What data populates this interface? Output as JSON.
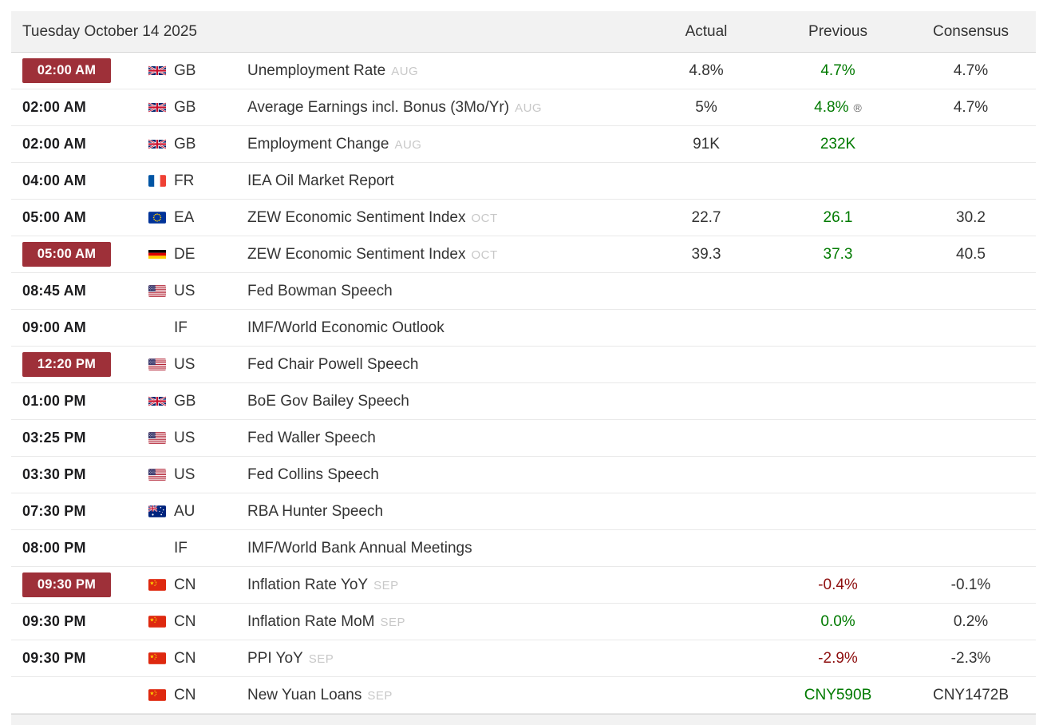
{
  "header": {
    "date": "Tuesday October 14 2025",
    "columns": {
      "actual": "Actual",
      "previous": "Previous",
      "consensus": "Consensus"
    }
  },
  "colors": {
    "badge_red": "#9e3039",
    "positive_green": "#007a00",
    "negative_red": "#8e0f0f",
    "header_bg": "#f2f2f2",
    "row_divider": "#e9e9e9"
  },
  "revised_marker": "®",
  "rows": [
    {
      "time": "02:00 AM",
      "highlight": true,
      "flag": "gb",
      "country": "GB",
      "event": "Unemployment Rate",
      "ref": "AUG",
      "actual": "4.8%",
      "previous": "4.7%",
      "previous_color": "green",
      "consensus": "4.7%"
    },
    {
      "time": "02:00 AM",
      "highlight": false,
      "flag": "gb",
      "country": "GB",
      "event": "Average Earnings incl. Bonus (3Mo/Yr)",
      "ref": "AUG",
      "actual": "5%",
      "previous": "4.8%",
      "previous_color": "green",
      "previous_revised": true,
      "consensus": "4.7%"
    },
    {
      "time": "02:00 AM",
      "highlight": false,
      "flag": "gb",
      "country": "GB",
      "event": "Employment Change",
      "ref": "AUG",
      "actual": "91K",
      "previous": "232K",
      "previous_color": "green",
      "consensus": ""
    },
    {
      "time": "04:00 AM",
      "highlight": false,
      "flag": "fr",
      "country": "FR",
      "event": "IEA Oil Market Report",
      "ref": "",
      "actual": "",
      "previous": "",
      "consensus": ""
    },
    {
      "time": "05:00 AM",
      "highlight": false,
      "flag": "eu",
      "country": "EA",
      "event": "ZEW Economic Sentiment Index",
      "ref": "OCT",
      "actual": "22.7",
      "previous": "26.1",
      "previous_color": "green",
      "consensus": "30.2"
    },
    {
      "time": "05:00 AM",
      "highlight": true,
      "flag": "de",
      "country": "DE",
      "event": "ZEW Economic Sentiment Index",
      "ref": "OCT",
      "actual": "39.3",
      "previous": "37.3",
      "previous_color": "green",
      "consensus": "40.5"
    },
    {
      "time": "08:45 AM",
      "highlight": false,
      "flag": "us",
      "country": "US",
      "event": "Fed Bowman Speech",
      "ref": "",
      "actual": "",
      "previous": "",
      "consensus": ""
    },
    {
      "time": "09:00 AM",
      "highlight": false,
      "flag": null,
      "country": "IF",
      "event": "IMF/World Economic Outlook",
      "ref": "",
      "actual": "",
      "previous": "",
      "consensus": ""
    },
    {
      "time": "12:20 PM",
      "highlight": true,
      "flag": "us",
      "country": "US",
      "event": "Fed Chair Powell Speech",
      "ref": "",
      "actual": "",
      "previous": "",
      "consensus": ""
    },
    {
      "time": "01:00 PM",
      "highlight": false,
      "flag": "gb",
      "country": "GB",
      "event": "BoE Gov Bailey Speech",
      "ref": "",
      "actual": "",
      "previous": "",
      "consensus": ""
    },
    {
      "time": "03:25 PM",
      "highlight": false,
      "flag": "us",
      "country": "US",
      "event": "Fed Waller Speech",
      "ref": "",
      "actual": "",
      "previous": "",
      "consensus": ""
    },
    {
      "time": "03:30 PM",
      "highlight": false,
      "flag": "us",
      "country": "US",
      "event": "Fed Collins Speech",
      "ref": "",
      "actual": "",
      "previous": "",
      "consensus": ""
    },
    {
      "time": "07:30 PM",
      "highlight": false,
      "flag": "au",
      "country": "AU",
      "event": "RBA Hunter Speech",
      "ref": "",
      "actual": "",
      "previous": "",
      "consensus": ""
    },
    {
      "time": "08:00 PM",
      "highlight": false,
      "flag": null,
      "country": "IF",
      "event": "IMF/World Bank Annual Meetings",
      "ref": "",
      "actual": "",
      "previous": "",
      "consensus": ""
    },
    {
      "time": "09:30 PM",
      "highlight": true,
      "flag": "cn",
      "country": "CN",
      "event": "Inflation Rate YoY",
      "ref": "SEP",
      "actual": "",
      "previous": "-0.4%",
      "previous_color": "red",
      "consensus": "-0.1%"
    },
    {
      "time": "09:30 PM",
      "highlight": false,
      "flag": "cn",
      "country": "CN",
      "event": "Inflation Rate MoM",
      "ref": "SEP",
      "actual": "",
      "previous": "0.0%",
      "previous_color": "green",
      "consensus": "0.2%"
    },
    {
      "time": "09:30 PM",
      "highlight": false,
      "flag": "cn",
      "country": "CN",
      "event": "PPI YoY",
      "ref": "SEP",
      "actual": "",
      "previous": "-2.9%",
      "previous_color": "red",
      "consensus": "-2.3%"
    },
    {
      "time": "",
      "highlight": false,
      "flag": "cn",
      "country": "CN",
      "event": "New Yuan Loans",
      "ref": "SEP",
      "actual": "",
      "previous": "CNY590B",
      "previous_color": "green",
      "consensus": "CNY1472B"
    }
  ]
}
